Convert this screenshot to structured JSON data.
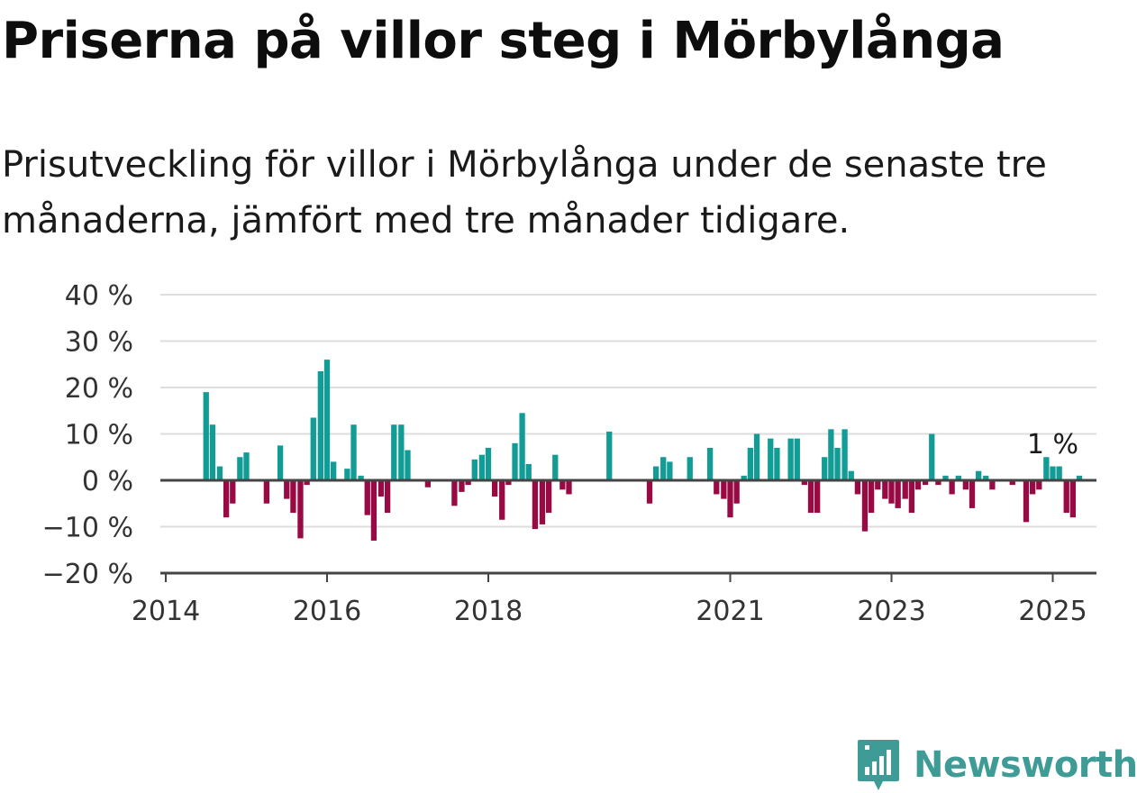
{
  "header": {
    "title": "Priserna på villor steg i Mörbylånga",
    "subtitle": "Prisutveckling för villor i Mörbylånga under de senaste tre månaderna, jämfört med tre månader tidigare."
  },
  "brand": {
    "name": "Newsworthy",
    "icon": "newsworthy-logo-icon",
    "color": "#3f9b96"
  },
  "colors": {
    "positive": "#119c95",
    "negative": "#990a44",
    "grid": "#dddddd",
    "axis": "#444444"
  },
  "chart_data": {
    "type": "bar",
    "ylim": [
      -20,
      40
    ],
    "yticks": [
      {
        "value": 40,
        "label": "40 %"
      },
      {
        "value": 30,
        "label": "30 %"
      },
      {
        "value": 20,
        "label": "20 %"
      },
      {
        "value": 10,
        "label": "10 %"
      },
      {
        "value": 0,
        "label": "0 %"
      },
      {
        "value": -10,
        "label": "−10 %"
      },
      {
        "value": -20,
        "label": "−20 %"
      }
    ],
    "xlim": [
      2014.0,
      2025.83
    ],
    "xticks": [
      {
        "value": 2014,
        "label": "2014"
      },
      {
        "value": 2016,
        "label": "2016"
      },
      {
        "value": 2018,
        "label": "2018"
      },
      {
        "value": 2021,
        "label": "2021"
      },
      {
        "value": 2023,
        "label": "2023"
      },
      {
        "value": 2025,
        "label": "2025"
      }
    ],
    "grid": true,
    "annotation": {
      "x": 2025.0,
      "y": 1,
      "label": "1 %"
    },
    "points": [
      {
        "x": 2014.5,
        "y": 19
      },
      {
        "x": 2014.58,
        "y": 12
      },
      {
        "x": 2014.67,
        "y": 3
      },
      {
        "x": 2014.75,
        "y": -8
      },
      {
        "x": 2014.83,
        "y": -5
      },
      {
        "x": 2014.92,
        "y": 5
      },
      {
        "x": 2015.0,
        "y": 6
      },
      {
        "x": 2015.25,
        "y": -5
      },
      {
        "x": 2015.42,
        "y": 7.5
      },
      {
        "x": 2015.5,
        "y": -4
      },
      {
        "x": 2015.58,
        "y": -7
      },
      {
        "x": 2015.67,
        "y": -12.5
      },
      {
        "x": 2015.75,
        "y": -1
      },
      {
        "x": 2015.83,
        "y": 13.5
      },
      {
        "x": 2015.92,
        "y": 23.5
      },
      {
        "x": 2016.0,
        "y": 26
      },
      {
        "x": 2016.08,
        "y": 4
      },
      {
        "x": 2016.25,
        "y": 2.5
      },
      {
        "x": 2016.33,
        "y": 12
      },
      {
        "x": 2016.42,
        "y": 1
      },
      {
        "x": 2016.5,
        "y": -7.5
      },
      {
        "x": 2016.58,
        "y": -13
      },
      {
        "x": 2016.67,
        "y": -3.5
      },
      {
        "x": 2016.75,
        "y": -7
      },
      {
        "x": 2016.83,
        "y": 12
      },
      {
        "x": 2016.92,
        "y": 12
      },
      {
        "x": 2017.0,
        "y": 6.5
      },
      {
        "x": 2017.25,
        "y": -1.5
      },
      {
        "x": 2017.58,
        "y": -5.5
      },
      {
        "x": 2017.67,
        "y": -2.5
      },
      {
        "x": 2017.75,
        "y": -1
      },
      {
        "x": 2017.83,
        "y": 4.5
      },
      {
        "x": 2017.92,
        "y": 5.5
      },
      {
        "x": 2018.0,
        "y": 7
      },
      {
        "x": 2018.08,
        "y": -3.5
      },
      {
        "x": 2018.17,
        "y": -8.5
      },
      {
        "x": 2018.25,
        "y": -1
      },
      {
        "x": 2018.33,
        "y": 8
      },
      {
        "x": 2018.42,
        "y": 14.5
      },
      {
        "x": 2018.5,
        "y": 3.5
      },
      {
        "x": 2018.58,
        "y": -10.5
      },
      {
        "x": 2018.67,
        "y": -9.5
      },
      {
        "x": 2018.75,
        "y": -7
      },
      {
        "x": 2018.83,
        "y": 5.5
      },
      {
        "x": 2018.92,
        "y": -2
      },
      {
        "x": 2019.0,
        "y": -3
      },
      {
        "x": 2019.5,
        "y": 10.5
      },
      {
        "x": 2020.0,
        "y": -5
      },
      {
        "x": 2020.08,
        "y": 3
      },
      {
        "x": 2020.17,
        "y": 5
      },
      {
        "x": 2020.25,
        "y": 4
      },
      {
        "x": 2020.5,
        "y": 5
      },
      {
        "x": 2020.75,
        "y": 7
      },
      {
        "x": 2020.83,
        "y": -3
      },
      {
        "x": 2020.92,
        "y": -4
      },
      {
        "x": 2021.0,
        "y": -8
      },
      {
        "x": 2021.08,
        "y": -5
      },
      {
        "x": 2021.17,
        "y": 1
      },
      {
        "x": 2021.25,
        "y": 7
      },
      {
        "x": 2021.33,
        "y": 10
      },
      {
        "x": 2021.5,
        "y": 9
      },
      {
        "x": 2021.58,
        "y": 7
      },
      {
        "x": 2021.75,
        "y": 9
      },
      {
        "x": 2021.83,
        "y": 9
      },
      {
        "x": 2021.92,
        "y": -1
      },
      {
        "x": 2022.0,
        "y": -7
      },
      {
        "x": 2022.08,
        "y": -7
      },
      {
        "x": 2022.17,
        "y": 5
      },
      {
        "x": 2022.25,
        "y": 11
      },
      {
        "x": 2022.33,
        "y": 7
      },
      {
        "x": 2022.42,
        "y": 11
      },
      {
        "x": 2022.5,
        "y": 2
      },
      {
        "x": 2022.58,
        "y": -3
      },
      {
        "x": 2022.67,
        "y": -11
      },
      {
        "x": 2022.75,
        "y": -7
      },
      {
        "x": 2022.83,
        "y": -2
      },
      {
        "x": 2022.92,
        "y": -4
      },
      {
        "x": 2023.0,
        "y": -5
      },
      {
        "x": 2023.08,
        "y": -6
      },
      {
        "x": 2023.17,
        "y": -4
      },
      {
        "x": 2023.25,
        "y": -7
      },
      {
        "x": 2023.33,
        "y": -2
      },
      {
        "x": 2023.42,
        "y": -1
      },
      {
        "x": 2023.5,
        "y": 10
      },
      {
        "x": 2023.58,
        "y": -1
      },
      {
        "x": 2023.67,
        "y": 1
      },
      {
        "x": 2023.75,
        "y": -3
      },
      {
        "x": 2023.83,
        "y": 1
      },
      {
        "x": 2023.92,
        "y": -2
      },
      {
        "x": 2024.0,
        "y": -6
      },
      {
        "x": 2024.08,
        "y": 2
      },
      {
        "x": 2024.17,
        "y": 1
      },
      {
        "x": 2024.25,
        "y": -2
      },
      {
        "x": 2024.5,
        "y": -1
      },
      {
        "x": 2024.67,
        "y": -9
      },
      {
        "x": 2024.75,
        "y": -3
      },
      {
        "x": 2024.83,
        "y": -2
      },
      {
        "x": 2024.92,
        "y": 5
      },
      {
        "x": 2025.0,
        "y": 3
      },
      {
        "x": 2025.08,
        "y": 3
      },
      {
        "x": 2025.17,
        "y": -7
      },
      {
        "x": 2025.25,
        "y": -8
      },
      {
        "x": 2025.33,
        "y": 1
      }
    ]
  }
}
